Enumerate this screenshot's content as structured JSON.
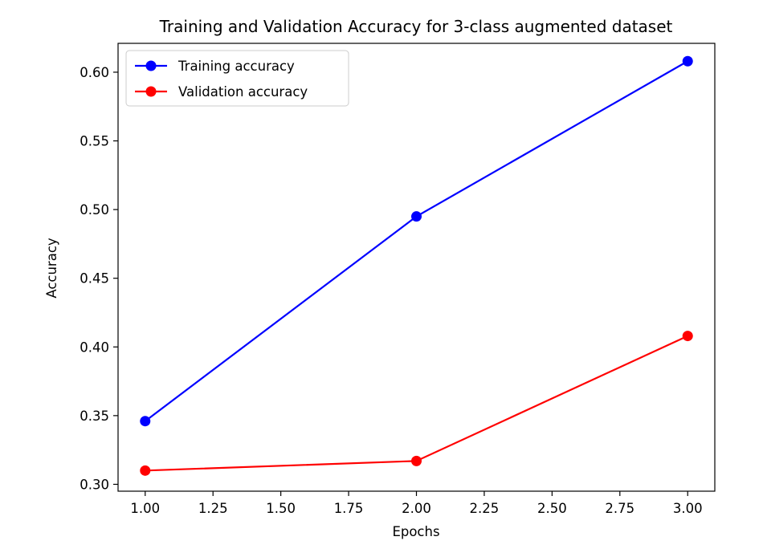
{
  "chart_data": {
    "type": "line",
    "title": "Training and Validation Accuracy for 3-class augmented dataset",
    "xlabel": "Epochs",
    "ylabel": "Accuracy",
    "x": [
      1.0,
      2.0,
      3.0
    ],
    "series": [
      {
        "name": "Training accuracy",
        "values": [
          0.346,
          0.495,
          0.608
        ],
        "color": "#0000ff",
        "marker": "circle"
      },
      {
        "name": "Validation accuracy",
        "values": [
          0.31,
          0.317,
          0.408
        ],
        "color": "#ff0000",
        "marker": "circle"
      }
    ],
    "xlim": [
      0.9,
      3.1
    ],
    "ylim": [
      0.295,
      0.621
    ],
    "xticks": [
      1.0,
      1.25,
      1.5,
      1.75,
      2.0,
      2.25,
      2.5,
      2.75,
      3.0
    ],
    "xtick_labels": [
      "1.00",
      "1.25",
      "1.50",
      "1.75",
      "2.00",
      "2.25",
      "2.50",
      "2.75",
      "3.00"
    ],
    "yticks": [
      0.3,
      0.35,
      0.4,
      0.45,
      0.5,
      0.55,
      0.6
    ],
    "ytick_labels": [
      "0.30",
      "0.35",
      "0.40",
      "0.45",
      "0.50",
      "0.55",
      "0.60"
    ],
    "grid": false,
    "legend_position": "upper-left"
  }
}
